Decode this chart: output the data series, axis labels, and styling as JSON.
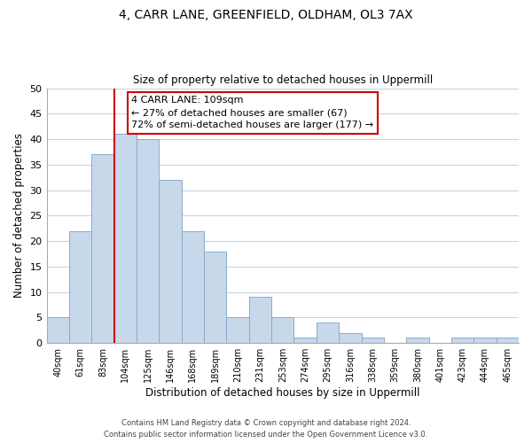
{
  "title": "4, CARR LANE, GREENFIELD, OLDHAM, OL3 7AX",
  "subtitle": "Size of property relative to detached houses in Uppermill",
  "xlabel": "Distribution of detached houses by size in Uppermill",
  "ylabel": "Number of detached properties",
  "bin_labels": [
    "40sqm",
    "61sqm",
    "83sqm",
    "104sqm",
    "125sqm",
    "146sqm",
    "168sqm",
    "189sqm",
    "210sqm",
    "231sqm",
    "253sqm",
    "274sqm",
    "295sqm",
    "316sqm",
    "338sqm",
    "359sqm",
    "380sqm",
    "401sqm",
    "423sqm",
    "444sqm",
    "465sqm"
  ],
  "bar_values": [
    5,
    22,
    37,
    41,
    40,
    32,
    22,
    18,
    5,
    9,
    5,
    1,
    4,
    2,
    1,
    0,
    1,
    0,
    1,
    1,
    1
  ],
  "bar_color": "#c8d8eb",
  "bar_edge_color": "#8aaac8",
  "vline_x_idx": 3,
  "vline_color": "#cc0000",
  "ylim": [
    0,
    50
  ],
  "yticks": [
    0,
    5,
    10,
    15,
    20,
    25,
    30,
    35,
    40,
    45,
    50
  ],
  "annotation_title": "4 CARR LANE: 109sqm",
  "annotation_line1": "← 27% of detached houses are smaller (67)",
  "annotation_line2": "72% of semi-detached houses are larger (177) →",
  "annotation_box_color": "#ffffff",
  "annotation_box_edge": "#cc0000",
  "footer_line1": "Contains HM Land Registry data © Crown copyright and database right 2024.",
  "footer_line2": "Contains public sector information licensed under the Open Government Licence v3.0.",
  "background_color": "#ffffff",
  "grid_color": "#c8d4e0"
}
